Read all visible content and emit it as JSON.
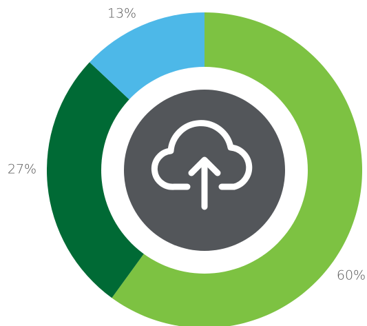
{
  "chart_data": {
    "type": "pie",
    "categories": [
      null,
      null,
      null
    ],
    "values": [
      60,
      27,
      13
    ],
    "value_labels": [
      "60%",
      "27%",
      "13%"
    ],
    "colors": [
      "#7dc242",
      "#006a35",
      "#4db8e8"
    ]
  }
}
